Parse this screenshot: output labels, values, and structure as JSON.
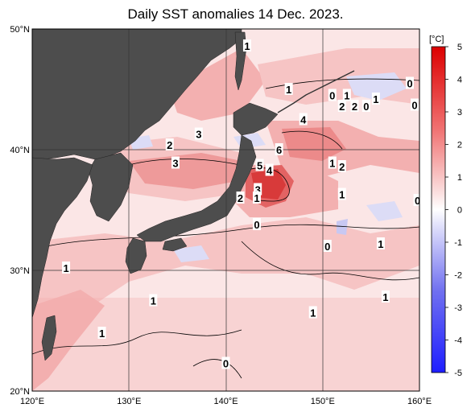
{
  "title": "Daily SST anomalies 14 Dec. 2023.",
  "map": {
    "lon_range": [
      120,
      160
    ],
    "lat_range": [
      20,
      50
    ],
    "lon_ticks": [
      "120°E",
      "130°E",
      "140°E",
      "150°E",
      "160°E"
    ],
    "lat_ticks": [
      "50°N",
      "40°N",
      "30°N",
      "20°N"
    ],
    "land_color": "#4d4d4d",
    "grid": true
  },
  "colorbar": {
    "unit": "[°C]",
    "ticks": [
      "5",
      "4",
      "3",
      "2",
      "1",
      "0",
      "-1",
      "-2",
      "-3",
      "-4",
      "-5"
    ],
    "warm_color": "#dc0000",
    "cool_color": "#1e1eff"
  },
  "contour_labels": [
    {
      "text": "1",
      "lon": 142.2,
      "lat": 48.6
    },
    {
      "text": "1",
      "lon": 146.5,
      "lat": 45.0
    },
    {
      "text": "0",
      "lon": 151.0,
      "lat": 44.5
    },
    {
      "text": "1",
      "lon": 152.5,
      "lat": 44.5
    },
    {
      "text": "0",
      "lon": 159.0,
      "lat": 45.5
    },
    {
      "text": "1",
      "lon": 155.5,
      "lat": 44.2
    },
    {
      "text": "0",
      "lon": 159.5,
      "lat": 43.7
    },
    {
      "text": "2",
      "lon": 152.0,
      "lat": 43.6
    },
    {
      "text": "2",
      "lon": 153.3,
      "lat": 43.6
    },
    {
      "text": "0",
      "lon": 154.5,
      "lat": 43.6
    },
    {
      "text": "4",
      "lon": 148.0,
      "lat": 42.5
    },
    {
      "text": "3",
      "lon": 137.2,
      "lat": 41.3
    },
    {
      "text": "2",
      "lon": 134.2,
      "lat": 40.4
    },
    {
      "text": "6",
      "lon": 145.5,
      "lat": 40.0
    },
    {
      "text": "3",
      "lon": 134.8,
      "lat": 38.9
    },
    {
      "text": "1",
      "lon": 151.0,
      "lat": 38.9
    },
    {
      "text": "2",
      "lon": 152.0,
      "lat": 38.6
    },
    {
      "text": "5",
      "lon": 143.5,
      "lat": 38.7
    },
    {
      "text": "4",
      "lon": 144.5,
      "lat": 38.3
    },
    {
      "text": "3",
      "lon": 143.3,
      "lat": 36.7
    },
    {
      "text": "1",
      "lon": 152.0,
      "lat": 36.3
    },
    {
      "text": "2",
      "lon": 141.5,
      "lat": 36.0
    },
    {
      "text": "1",
      "lon": 143.2,
      "lat": 36.0
    },
    {
      "text": "0",
      "lon": 159.8,
      "lat": 35.8
    },
    {
      "text": "0",
      "lon": 143.2,
      "lat": 33.8
    },
    {
      "text": "0",
      "lon": 150.5,
      "lat": 32.0
    },
    {
      "text": "1",
      "lon": 156.0,
      "lat": 32.2
    },
    {
      "text": "1",
      "lon": 123.5,
      "lat": 30.2
    },
    {
      "text": "1",
      "lon": 132.5,
      "lat": 27.5
    },
    {
      "text": "1",
      "lon": 156.5,
      "lat": 27.8
    },
    {
      "text": "1",
      "lon": 149.0,
      "lat": 26.5
    },
    {
      "text": "1",
      "lon": 127.2,
      "lat": 24.8
    },
    {
      "text": "0",
      "lon": 140.0,
      "lat": 22.3
    }
  ]
}
